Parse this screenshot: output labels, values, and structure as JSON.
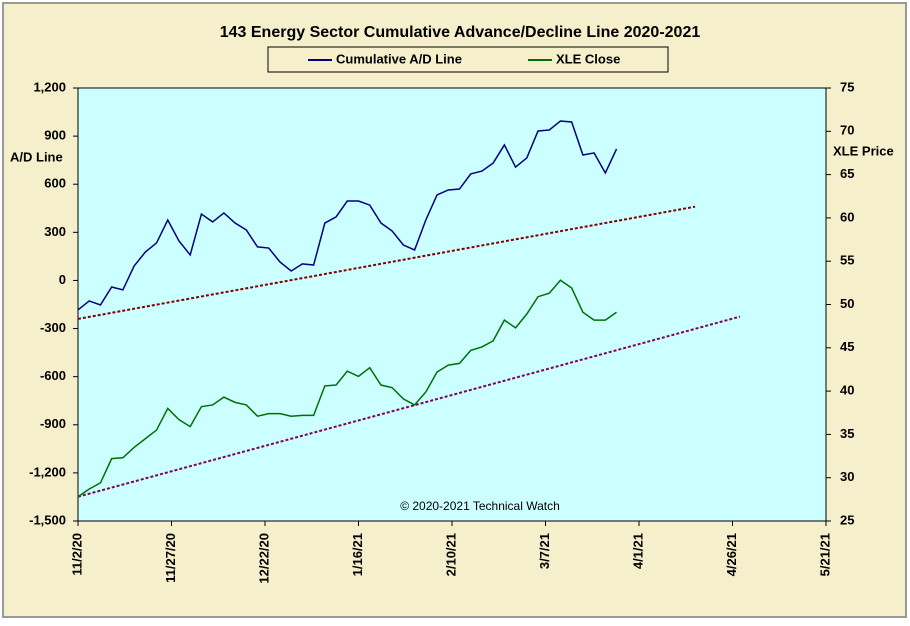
{
  "chart_data": {
    "type": "line",
    "title": "143 Energy Sector Cumulative Advance/Decline Line 2020-2021",
    "ylabel": "A/D Line",
    "y2label": "XLE Price",
    "annotation": "© 2020-2021 Technical Watch",
    "x": [
      "11/2/20",
      "11/5/20",
      "11/8/20",
      "11/11/20",
      "11/14/20",
      "11/17/20",
      "11/20/20",
      "11/23/20",
      "11/26/20",
      "11/29/20",
      "12/2/20",
      "12/5/20",
      "12/8/20",
      "12/11/20",
      "12/14/20",
      "12/17/20",
      "12/20/20",
      "12/23/20",
      "12/26/20",
      "12/29/20",
      "1/1/21",
      "1/4/21",
      "1/7/21",
      "1/10/21",
      "1/13/21",
      "1/16/21",
      "1/19/21",
      "1/22/21",
      "1/25/21",
      "1/28/21",
      "1/31/21",
      "2/3/21",
      "2/6/21",
      "2/9/21",
      "2/12/21",
      "2/15/21",
      "2/18/21",
      "2/21/21",
      "2/24/21",
      "2/27/21",
      "3/2/21",
      "3/5/21",
      "3/8/21",
      "3/11/21",
      "3/14/21",
      "3/17/21",
      "3/20/21",
      "3/23/21",
      "3/26/21"
    ],
    "series": [
      {
        "name": "Cumulative A/D Line",
        "color": "#000080",
        "axis": "y",
        "values": [
          -184,
          -128,
          -153,
          -41,
          -59,
          90,
          177,
          234,
          377,
          246,
          159,
          414,
          365,
          421,
          358,
          315,
          209,
          202,
          115,
          59,
          103,
          96,
          358,
          396,
          495,
          495,
          470,
          358,
          308,
          221,
          190,
          377,
          533,
          564,
          570,
          664,
          682,
          732,
          845,
          707,
          764,
          932,
          938,
          994,
          988,
          782,
          795,
          670,
          820
        ]
      },
      {
        "name": "XLE Close",
        "color": "#007000",
        "axis": "y2",
        "values": [
          27.8,
          28.7,
          29.4,
          32.2,
          32.3,
          33.5,
          34.5,
          35.5,
          38.0,
          36.7,
          35.9,
          38.2,
          38.4,
          39.3,
          38.7,
          38.4,
          37.1,
          37.4,
          37.4,
          37.1,
          37.2,
          37.2,
          40.6,
          40.7,
          42.3,
          41.7,
          42.7,
          40.7,
          40.4,
          39.1,
          38.4,
          39.9,
          42.2,
          43.0,
          43.2,
          44.7,
          45.1,
          45.8,
          48.2,
          47.3,
          48.9,
          50.9,
          51.3,
          52.8,
          51.9,
          49.1,
          48.2,
          48.2,
          49.1
        ]
      }
    ],
    "trendlines": [
      {
        "color": "#800000",
        "axis": "y",
        "x": [
          "11/2/20",
          "4/16/21"
        ],
        "values": [
          -240,
          460
        ]
      },
      {
        "color": "#800060",
        "axis": "y2",
        "x": [
          "11/2/20",
          "4/28/21"
        ],
        "values": [
          27.8,
          48.6
        ]
      }
    ],
    "xlim": [
      "11/2/20",
      "5/21/21"
    ],
    "xticks": [
      "11/2/20",
      "11/27/20",
      "12/22/20",
      "1/16/21",
      "2/10/21",
      "3/7/21",
      "4/1/21",
      "4/26/21",
      "5/21/21"
    ],
    "ylim": [
      -1500,
      1200
    ],
    "yticks": [
      {
        "value": 1200,
        "label": "1,200"
      },
      900,
      600,
      300,
      0,
      -300,
      -600,
      -900,
      {
        "value": -1200,
        "label": "-1,200"
      },
      {
        "value": -1500,
        "label": "-1,500"
      }
    ],
    "y2lim": [
      25,
      75
    ],
    "y2ticks": [
      75,
      70,
      65,
      60,
      55,
      50,
      45,
      40,
      35,
      30,
      25
    ],
    "background": "#f5efcc",
    "plot_background": "#ccffff"
  }
}
